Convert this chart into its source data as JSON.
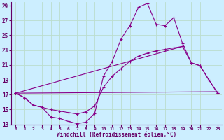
{
  "xlabel": "Windchill (Refroidissement éolien,°C)",
  "background_color": "#cceeff",
  "grid_color": "#bbddcc",
  "line_color": "#880088",
  "xlim": [
    -0.5,
    23.5
  ],
  "ylim": [
    13,
    29.5
  ],
  "xticks": [
    0,
    1,
    2,
    3,
    4,
    5,
    6,
    7,
    8,
    9,
    10,
    11,
    12,
    13,
    14,
    15,
    16,
    17,
    18,
    19,
    20,
    21,
    22,
    23
  ],
  "yticks": [
    13,
    15,
    17,
    19,
    21,
    23,
    25,
    27,
    29
  ],
  "series": [
    {
      "x": [
        0,
        1,
        2,
        3,
        4,
        5,
        6,
        7,
        8,
        9,
        10,
        11,
        12,
        13,
        14,
        15,
        16,
        17,
        18,
        19,
        20,
        21,
        22,
        23
      ],
      "y": [
        17.2,
        16.6,
        15.6,
        15.3,
        14.0,
        13.8,
        13.4,
        13.1,
        13.3,
        14.5,
        19.5,
        21.5,
        24.5,
        26.3,
        28.8,
        29.3,
        26.5,
        26.3,
        27.4,
        23.9,
        21.3,
        20.9,
        19.0,
        17.2
      ]
    },
    {
      "x": [
        0,
        1,
        2,
        3,
        4,
        5,
        6,
        7,
        8,
        9,
        10,
        11,
        12,
        13,
        14,
        15,
        16,
        17,
        18,
        19,
        20,
        21,
        22,
        23
      ],
      "y": [
        17.2,
        16.6,
        15.6,
        15.3,
        15.0,
        14.8,
        14.6,
        14.4,
        14.7,
        15.5,
        18.0,
        19.5,
        20.5,
        21.5,
        22.2,
        22.6,
        22.9,
        23.1,
        23.3,
        23.5,
        21.3,
        20.9,
        19.0,
        17.2
      ]
    },
    {
      "x": [
        0,
        23
      ],
      "y": [
        17.2,
        17.4
      ]
    },
    {
      "x": [
        0,
        19
      ],
      "y": [
        17.2,
        23.5
      ]
    }
  ]
}
